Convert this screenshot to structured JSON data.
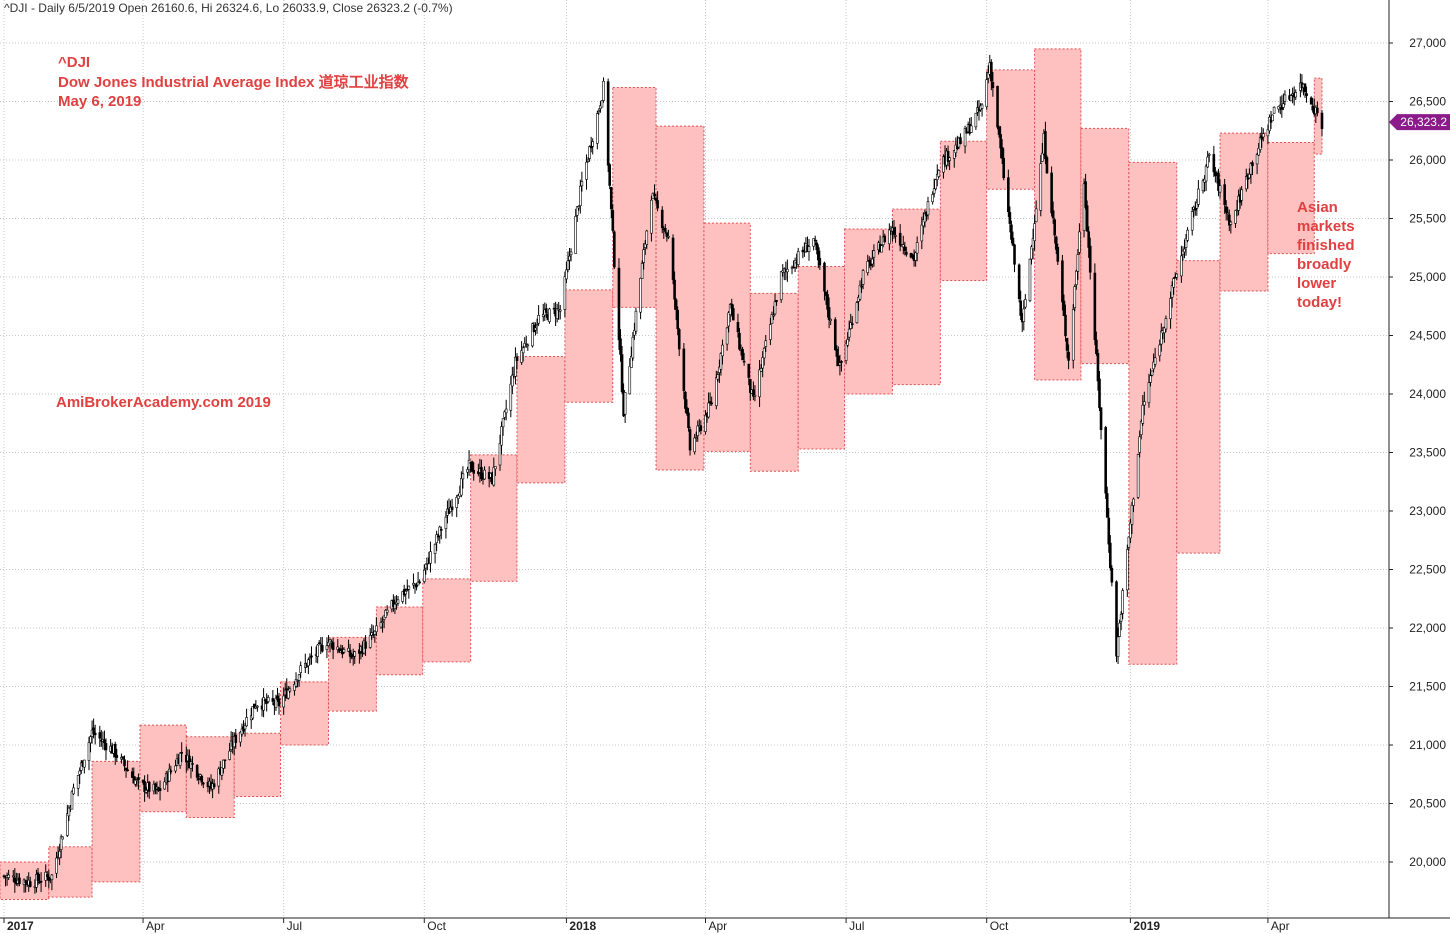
{
  "header": {
    "text": "^DJI - Daily 6/5/2019 Open 26160.6, Hi 26324.6, Lo 26033.9, Close 26323.2 (-0.7%)"
  },
  "annotations": {
    "ticker": "^DJI",
    "index_name": "Dow Jones Industrial Average Index  道琼工业指数",
    "date": "May 6, 2019",
    "watermark": "AmiBrokerAcademy.com  2019",
    "comment": [
      "Asian",
      "markets",
      "finished",
      "broadly",
      "lower",
      "today!"
    ]
  },
  "colors": {
    "box_fill": "#ffc0c0",
    "box_stroke": "#e05050",
    "candle": "#000000",
    "grid": "#c8c8c8",
    "text_accent": "#e04040",
    "badge": "#8b1a8b"
  },
  "chart_data": {
    "type": "candlestick",
    "x_start": "2017-01-03",
    "x_end": "2019-05-06",
    "ylim": [
      19600,
      27300
    ],
    "y_ticks": [
      {
        "value": 20000,
        "label": "20,000"
      },
      {
        "value": 20500,
        "label": "20,500"
      },
      {
        "value": 21000,
        "label": "21,000"
      },
      {
        "value": 21500,
        "label": "21,500"
      },
      {
        "value": 22000,
        "label": "22,000"
      },
      {
        "value": 22500,
        "label": "22,500"
      },
      {
        "value": 23000,
        "label": "23,000"
      },
      {
        "value": 23500,
        "label": "23,500"
      },
      {
        "value": 24000,
        "label": "24,000"
      },
      {
        "value": 24500,
        "label": "24,500"
      },
      {
        "value": 25000,
        "label": "25,000"
      },
      {
        "value": 25500,
        "label": "25,500"
      },
      {
        "value": 26000,
        "label": "26,000"
      },
      {
        "value": 26500,
        "label": "26,500"
      },
      {
        "value": 27000,
        "label": "27,000"
      }
    ],
    "x_ticks": [
      {
        "date": "2017-01-03",
        "label": "2017",
        "bold": true
      },
      {
        "date": "2017-04-03",
        "label": "Apr",
        "bold": false
      },
      {
        "date": "2017-07-03",
        "label": "Jul",
        "bold": false
      },
      {
        "date": "2017-10-02",
        "label": "Oct",
        "bold": false
      },
      {
        "date": "2018-01-02",
        "label": "2018",
        "bold": true
      },
      {
        "date": "2018-04-02",
        "label": "Apr",
        "bold": false
      },
      {
        "date": "2018-07-02",
        "label": "Jul",
        "bold": false
      },
      {
        "date": "2018-10-01",
        "label": "Oct",
        "bold": false
      },
      {
        "date": "2019-01-02",
        "label": "2019",
        "bold": true
      },
      {
        "date": "2019-04-01",
        "label": "Apr",
        "bold": false
      }
    ],
    "last_close": {
      "value": 26323.2,
      "label": "26,323.2"
    },
    "month_ranges": [
      {
        "month": "2017-01",
        "high": 20000,
        "low": 19680
      },
      {
        "month": "2017-02",
        "high": 20130,
        "low": 19700
      },
      {
        "month": "2017-03",
        "high": 20860,
        "low": 19830
      },
      {
        "month": "2017-04",
        "high": 21170,
        "low": 20430
      },
      {
        "month": "2017-05",
        "high": 21070,
        "low": 20380
      },
      {
        "month": "2017-06",
        "high": 21100,
        "low": 20560
      },
      {
        "month": "2017-07",
        "high": 21540,
        "low": 21000
      },
      {
        "month": "2017-08",
        "high": 21920,
        "low": 21290
      },
      {
        "month": "2017-09",
        "high": 22180,
        "low": 21600
      },
      {
        "month": "2017-10",
        "high": 22420,
        "low": 21710
      },
      {
        "month": "2017-11",
        "high": 23480,
        "low": 22400
      },
      {
        "month": "2017-12",
        "high": 24320,
        "low": 23240
      },
      {
        "month": "2018-01",
        "high": 24890,
        "low": 23930
      },
      {
        "month": "2018-02",
        "high": 26620,
        "low": 24740
      },
      {
        "month": "2018-03",
        "high": 26290,
        "low": 23350
      },
      {
        "month": "2018-04",
        "high": 25460,
        "low": 23510
      },
      {
        "month": "2018-05",
        "high": 24860,
        "low": 23340
      },
      {
        "month": "2018-06",
        "high": 25090,
        "low": 23530
      },
      {
        "month": "2018-07",
        "high": 25410,
        "low": 24000
      },
      {
        "month": "2018-08",
        "high": 25580,
        "low": 24080
      },
      {
        "month": "2018-09",
        "high": 26160,
        "low": 24970
      },
      {
        "month": "2018-10",
        "high": 26770,
        "low": 25750
      },
      {
        "month": "2018-11",
        "high": 26950,
        "low": 24120
      },
      {
        "month": "2018-12",
        "high": 26270,
        "low": 24260
      },
      {
        "month": "2019-01",
        "high": 25980,
        "low": 21690
      },
      {
        "month": "2019-02",
        "high": 25140,
        "low": 22640
      },
      {
        "month": "2019-03",
        "high": 26230,
        "low": 24880
      },
      {
        "month": "2019-04",
        "high": 26150,
        "low": 25200
      },
      {
        "month": "2019-05",
        "high": 26700,
        "low": 26050
      }
    ],
    "closes_approx": [
      {
        "date": "2017-01-03",
        "close": 19880
      },
      {
        "date": "2017-01-20",
        "close": 19830
      },
      {
        "date": "2017-02-03",
        "close": 19880
      },
      {
        "date": "2017-02-17",
        "close": 20620
      },
      {
        "date": "2017-03-01",
        "close": 21110
      },
      {
        "date": "2017-03-15",
        "close": 20950
      },
      {
        "date": "2017-03-31",
        "close": 20660
      },
      {
        "date": "2017-04-13",
        "close": 20600
      },
      {
        "date": "2017-04-28",
        "close": 20940
      },
      {
        "date": "2017-05-17",
        "close": 20630
      },
      {
        "date": "2017-05-31",
        "close": 21010
      },
      {
        "date": "2017-06-15",
        "close": 21360
      },
      {
        "date": "2017-06-30",
        "close": 21350
      },
      {
        "date": "2017-07-14",
        "close": 21640
      },
      {
        "date": "2017-07-31",
        "close": 21890
      },
      {
        "date": "2017-08-17",
        "close": 21750
      },
      {
        "date": "2017-08-31",
        "close": 21950
      },
      {
        "date": "2017-09-15",
        "close": 22270
      },
      {
        "date": "2017-09-29",
        "close": 22400
      },
      {
        "date": "2017-10-16",
        "close": 22950
      },
      {
        "date": "2017-10-31",
        "close": 23380
      },
      {
        "date": "2017-11-15",
        "close": 23270
      },
      {
        "date": "2017-11-30",
        "close": 24270
      },
      {
        "date": "2017-12-15",
        "close": 24650
      },
      {
        "date": "2017-12-29",
        "close": 24720
      },
      {
        "date": "2018-01-12",
        "close": 25800
      },
      {
        "date": "2018-01-26",
        "close": 26620
      },
      {
        "date": "2018-02-08",
        "close": 23860
      },
      {
        "date": "2018-02-26",
        "close": 25710
      },
      {
        "date": "2018-03-09",
        "close": 25330
      },
      {
        "date": "2018-03-23",
        "close": 23530
      },
      {
        "date": "2018-04-06",
        "close": 23930
      },
      {
        "date": "2018-04-18",
        "close": 24750
      },
      {
        "date": "2018-05-03",
        "close": 23930
      },
      {
        "date": "2018-05-21",
        "close": 25010
      },
      {
        "date": "2018-06-11",
        "close": 25320
      },
      {
        "date": "2018-06-28",
        "close": 24220
      },
      {
        "date": "2018-07-13",
        "close": 25020
      },
      {
        "date": "2018-07-31",
        "close": 25420
      },
      {
        "date": "2018-08-15",
        "close": 25160
      },
      {
        "date": "2018-08-31",
        "close": 25960
      },
      {
        "date": "2018-09-14",
        "close": 26150
      },
      {
        "date": "2018-09-28",
        "close": 26460
      },
      {
        "date": "2018-10-03",
        "close": 26830
      },
      {
        "date": "2018-10-24",
        "close": 24580
      },
      {
        "date": "2018-11-07",
        "close": 26180
      },
      {
        "date": "2018-11-23",
        "close": 24290
      },
      {
        "date": "2018-12-03",
        "close": 25830
      },
      {
        "date": "2018-12-24",
        "close": 21790
      },
      {
        "date": "2019-01-10",
        "close": 23880
      },
      {
        "date": "2019-01-31",
        "close": 24990
      },
      {
        "date": "2019-02-22",
        "close": 26030
      },
      {
        "date": "2019-03-08",
        "close": 25450
      },
      {
        "date": "2019-03-21",
        "close": 25960
      },
      {
        "date": "2019-04-05",
        "close": 26420
      },
      {
        "date": "2019-04-23",
        "close": 26650
      },
      {
        "date": "2019-05-06",
        "close": 26320
      }
    ]
  }
}
